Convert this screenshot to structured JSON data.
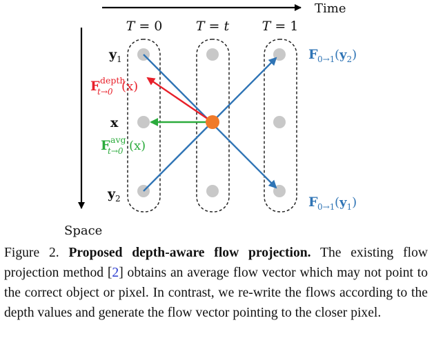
{
  "figure": {
    "time_axis_label": "Time",
    "space_axis_label": "Space",
    "columns": [
      "T = 0",
      "T = t",
      "T = 1"
    ],
    "column_symbols": [
      {
        "lhs": "T",
        "rhs": "0"
      },
      {
        "lhs": "T",
        "rhs": "t"
      },
      {
        "lhs": "T",
        "rhs": "1"
      }
    ],
    "row_labels": [
      "y1",
      "x",
      "y2"
    ],
    "row_label_parts": [
      {
        "base": "y",
        "sub": "1"
      },
      {
        "base": "x",
        "sub": ""
      },
      {
        "base": "y",
        "sub": "2"
      }
    ],
    "depth_flow_label": {
      "base": "F",
      "sup": "depth",
      "sub": "t→0",
      "arg": "(x)"
    },
    "avg_flow_label": {
      "base": "F",
      "sup": "avg",
      "sub": "t→0",
      "arg": "(x)"
    },
    "flow_y2_label": {
      "base": "F",
      "sub": "0→1",
      "arg_open": "(",
      "arg_var": "y",
      "arg_sub": "2",
      "arg_close": ")"
    },
    "flow_y1_label": {
      "base": "F",
      "sub": "0→1",
      "arg_open": "(",
      "arg_var": "y",
      "arg_sub": "1",
      "arg_close": ")"
    },
    "colors": {
      "pixel_gray": "#c8c8c8",
      "center_pixel": "#f07a2a",
      "blue_flow": "#2f74b5",
      "red_flow": "#e8202a",
      "green_flow": "#2bab3c",
      "axis": "#000000"
    }
  },
  "caption": {
    "label": "Figure 2.",
    "title": "Proposed depth-aware flow projection.",
    "text_before_cite": "The existing flow projection method [",
    "cite": "2",
    "text_after_cite": "] obtains an average flow vector which may not point to the correct object or pixel. In contrast, we re-write the flows according to the depth values and generate the flow vector pointing to the closer pixel."
  }
}
